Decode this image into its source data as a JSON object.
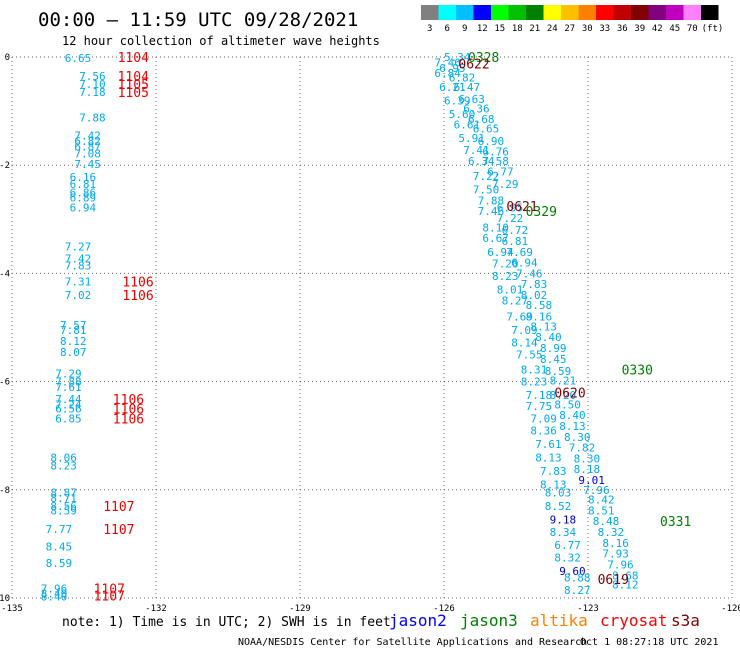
{
  "header": {
    "title": "00:00 – 11:59 UTC 09/28/2021",
    "subtitle": "12 hour collection of altimeter wave heights",
    "unit": "(ft)"
  },
  "color_scale": [
    {
      "label": "3",
      "color": "#808080"
    },
    {
      "label": "6",
      "color": "#00ffff"
    },
    {
      "label": "9",
      "color": "#00c0ff"
    },
    {
      "label": "12",
      "color": "#0000ff"
    },
    {
      "label": "15",
      "color": "#00ff00"
    },
    {
      "label": "18",
      "color": "#00c000"
    },
    {
      "label": "21",
      "color": "#008000"
    },
    {
      "label": "24",
      "color": "#ffff00"
    },
    {
      "label": "27",
      "color": "#ffc000"
    },
    {
      "label": "30",
      "color": "#ff8000"
    },
    {
      "label": "33",
      "color": "#ff0000"
    },
    {
      "label": "36",
      "color": "#c00000"
    },
    {
      "label": "39",
      "color": "#800000"
    },
    {
      "label": "42",
      "color": "#800080"
    },
    {
      "label": "45",
      "color": "#c000c0"
    },
    {
      "label": "70",
      "color": "#ff80ff"
    },
    {
      "label": "",
      "color": "#000000"
    }
  ],
  "footer": {
    "note": "note: 1) Time is in UTC; 2) SWH is in feet",
    "credit": "NOAA/NESDIS Center for Satellite Applications and Research",
    "timestamp": "Oct  1 08:27:18 UTC 2021",
    "satellites": [
      {
        "name": "jason2",
        "color": "#0000ff"
      },
      {
        "name": "jason3",
        "color": "#008000"
      },
      {
        "name": "altika",
        "color": "#ff8000"
      },
      {
        "name": "cryosat",
        "color": "#ff0000"
      },
      {
        "name": "s3a",
        "color": "#800000"
      }
    ]
  },
  "chart_data": {
    "type": "scatter",
    "xlim": [
      -135,
      -120
    ],
    "ylim": [
      -10,
      0
    ],
    "x_ticks": [
      "-135",
      "-132",
      "-129",
      "-126",
      "-123",
      "-120"
    ],
    "y_ticks": [
      "0",
      "-2",
      "-4",
      "-6",
      "-8",
      "-10"
    ],
    "grid": "dotted",
    "wave_heights": [
      {
        "x": -133.9,
        "y": -0.02,
        "v": "6.65",
        "color": "#00aaee"
      },
      {
        "x": -133.6,
        "y": -0.35,
        "v": "7.56",
        "color": "#00aaee"
      },
      {
        "x": -133.6,
        "y": -0.5,
        "v": "7.10",
        "color": "#00aaee"
      },
      {
        "x": -133.6,
        "y": -0.65,
        "v": "7.18",
        "color": "#00aaee"
      },
      {
        "x": -133.6,
        "y": -1.12,
        "v": "7.88",
        "color": "#00aaee"
      },
      {
        "x": -133.7,
        "y": -1.45,
        "v": "7.42",
        "color": "#00aaee"
      },
      {
        "x": -133.7,
        "y": -1.55,
        "v": "6.82",
        "color": "#00aaee"
      },
      {
        "x": -133.7,
        "y": -1.65,
        "v": "6.87",
        "color": "#00aaee"
      },
      {
        "x": -133.7,
        "y": -1.78,
        "v": "7.08",
        "color": "#00aaee"
      },
      {
        "x": -133.7,
        "y": -1.98,
        "v": "7.45",
        "color": "#00aaee"
      },
      {
        "x": -133.8,
        "y": -2.22,
        "v": "6.16",
        "color": "#00aaee"
      },
      {
        "x": -133.8,
        "y": -2.35,
        "v": "6.81",
        "color": "#00aaee"
      },
      {
        "x": -133.8,
        "y": -2.5,
        "v": "6.86",
        "color": "#00aaee"
      },
      {
        "x": -133.8,
        "y": -2.6,
        "v": "6.89",
        "color": "#00aaee"
      },
      {
        "x": -133.8,
        "y": -2.78,
        "v": "6.94",
        "color": "#00aaee"
      },
      {
        "x": -133.9,
        "y": -3.5,
        "v": "7.27",
        "color": "#00aaee"
      },
      {
        "x": -133.9,
        "y": -3.72,
        "v": "7.42",
        "color": "#00aaee"
      },
      {
        "x": -133.9,
        "y": -3.85,
        "v": "7.83",
        "color": "#00aaee"
      },
      {
        "x": -133.9,
        "y": -4.15,
        "v": "7.31",
        "color": "#00aaee"
      },
      {
        "x": -133.9,
        "y": -4.4,
        "v": "7.02",
        "color": "#00aaee"
      },
      {
        "x": -134.0,
        "y": -4.95,
        "v": "7.57",
        "color": "#00aaee"
      },
      {
        "x": -134.0,
        "y": -5.05,
        "v": "7.81",
        "color": "#00aaee"
      },
      {
        "x": -134.0,
        "y": -5.25,
        "v": "8.12",
        "color": "#00aaee"
      },
      {
        "x": -134.0,
        "y": -5.45,
        "v": "8.07",
        "color": "#00aaee"
      },
      {
        "x": -134.1,
        "y": -5.85,
        "v": "7.29",
        "color": "#00aaee"
      },
      {
        "x": -134.1,
        "y": -6.0,
        "v": "7.88",
        "color": "#00aaee"
      },
      {
        "x": -134.1,
        "y": -6.1,
        "v": "7.61",
        "color": "#00aaee"
      },
      {
        "x": -134.1,
        "y": -6.32,
        "v": "7.44",
        "color": "#00aaee"
      },
      {
        "x": -134.1,
        "y": -6.42,
        "v": "7.24",
        "color": "#00aaee"
      },
      {
        "x": -134.1,
        "y": -6.5,
        "v": "6.56",
        "color": "#00aaee"
      },
      {
        "x": -134.1,
        "y": -6.68,
        "v": "6.85",
        "color": "#00aaee"
      },
      {
        "x": -134.2,
        "y": -7.4,
        "v": "8.06",
        "color": "#00aaee"
      },
      {
        "x": -134.2,
        "y": -7.55,
        "v": "8.23",
        "color": "#00aaee"
      },
      {
        "x": -134.2,
        "y": -8.05,
        "v": "8.87",
        "color": "#00aaee"
      },
      {
        "x": -134.2,
        "y": -8.15,
        "v": "8.71",
        "color": "#00aaee"
      },
      {
        "x": -134.2,
        "y": -8.3,
        "v": "8.56",
        "color": "#00aaee"
      },
      {
        "x": -134.2,
        "y": -8.38,
        "v": "8.59",
        "color": "#00aaee"
      },
      {
        "x": -134.3,
        "y": -8.72,
        "v": "7.77",
        "color": "#00aaee"
      },
      {
        "x": -134.3,
        "y": -9.05,
        "v": "8.45",
        "color": "#00aaee"
      },
      {
        "x": -134.3,
        "y": -9.35,
        "v": "8.59",
        "color": "#00aaee"
      },
      {
        "x": -134.4,
        "y": -9.82,
        "v": "7.96",
        "color": "#00aaee"
      },
      {
        "x": -134.4,
        "y": -9.92,
        "v": "8.40",
        "color": "#00aaee"
      },
      {
        "x": -134.4,
        "y": -9.97,
        "v": "8.40",
        "color": "#00aaee"
      },
      {
        "x": -126.0,
        "y": -0.0,
        "v": "5.34",
        "color": "#00aaee"
      },
      {
        "x": -126.2,
        "y": -0.1,
        "v": "7.46",
        "color": "#00aaee"
      },
      {
        "x": -126.1,
        "y": -0.2,
        "v": "6.95",
        "color": "#00aaee"
      },
      {
        "x": -126.2,
        "y": -0.3,
        "v": "6.84",
        "color": "#00aaee"
      },
      {
        "x": -125.9,
        "y": -0.38,
        "v": "6.82",
        "color": "#00aaee"
      },
      {
        "x": -126.1,
        "y": -0.55,
        "v": "6.21",
        "color": "#00aaee"
      },
      {
        "x": -125.8,
        "y": -0.55,
        "v": "6.47",
        "color": "#00aaee"
      },
      {
        "x": -126.0,
        "y": -0.8,
        "v": "6.39",
        "color": "#00aaee"
      },
      {
        "x": -125.7,
        "y": -0.78,
        "v": "6.63",
        "color": "#00aaee"
      },
      {
        "x": -125.6,
        "y": -0.95,
        "v": "6.36",
        "color": "#00aaee"
      },
      {
        "x": -125.9,
        "y": -1.05,
        "v": "5.60",
        "color": "#00aaee"
      },
      {
        "x": -125.5,
        "y": -1.15,
        "v": "6.68",
        "color": "#00aaee"
      },
      {
        "x": -125.8,
        "y": -1.25,
        "v": "6.61",
        "color": "#00aaee"
      },
      {
        "x": -125.4,
        "y": -1.32,
        "v": "6.65",
        "color": "#00aaee"
      },
      {
        "x": -125.7,
        "y": -1.5,
        "v": "5.91",
        "color": "#00aaee"
      },
      {
        "x": -125.3,
        "y": -1.55,
        "v": "6.90",
        "color": "#00aaee"
      },
      {
        "x": -125.6,
        "y": -1.72,
        "v": "7.41",
        "color": "#00aaee"
      },
      {
        "x": -125.2,
        "y": -1.75,
        "v": "6.76",
        "color": "#00aaee"
      },
      {
        "x": -125.5,
        "y": -1.92,
        "v": "6.34",
        "color": "#00aaee"
      },
      {
        "x": -125.2,
        "y": -1.92,
        "v": "7.58",
        "color": "#00aaee"
      },
      {
        "x": -125.1,
        "y": -2.12,
        "v": "6.77",
        "color": "#00aaee"
      },
      {
        "x": -125.4,
        "y": -2.2,
        "v": "7.22",
        "color": "#00aaee"
      },
      {
        "x": -125.0,
        "y": -2.35,
        "v": "7.29",
        "color": "#00aaee"
      },
      {
        "x": -125.4,
        "y": -2.45,
        "v": "7.50",
        "color": "#00aaee"
      },
      {
        "x": -125.3,
        "y": -2.65,
        "v": "7.88",
        "color": "#00aaee"
      },
      {
        "x": -124.9,
        "y": -2.78,
        "v": "6.95",
        "color": "#00aaee"
      },
      {
        "x": -125.3,
        "y": -2.85,
        "v": "7.46",
        "color": "#00aaee"
      },
      {
        "x": -124.9,
        "y": -2.98,
        "v": "7.22",
        "color": "#00aaee"
      },
      {
        "x": -125.2,
        "y": -3.15,
        "v": "8.10",
        "color": "#00aaee"
      },
      {
        "x": -124.8,
        "y": -3.2,
        "v": "6.72",
        "color": "#00aaee"
      },
      {
        "x": -125.2,
        "y": -3.35,
        "v": "6.67",
        "color": "#00aaee"
      },
      {
        "x": -124.8,
        "y": -3.4,
        "v": "6.81",
        "color": "#00aaee"
      },
      {
        "x": -125.1,
        "y": -3.6,
        "v": "6.94",
        "color": "#00aaee"
      },
      {
        "x": -124.7,
        "y": -3.6,
        "v": "7.69",
        "color": "#00aaee"
      },
      {
        "x": -125.0,
        "y": -3.82,
        "v": "7.20",
        "color": "#00aaee"
      },
      {
        "x": -124.6,
        "y": -3.8,
        "v": "6.94",
        "color": "#00aaee"
      },
      {
        "x": -124.5,
        "y": -4.0,
        "v": "7.46",
        "color": "#00aaee"
      },
      {
        "x": -125.0,
        "y": -4.05,
        "v": "8.23",
        "color": "#00aaee"
      },
      {
        "x": -124.4,
        "y": -4.2,
        "v": "7.83",
        "color": "#00aaee"
      },
      {
        "x": -124.9,
        "y": -4.3,
        "v": "8.01",
        "color": "#00aaee"
      },
      {
        "x": -124.4,
        "y": -4.4,
        "v": "8.02",
        "color": "#00aaee"
      },
      {
        "x": -124.8,
        "y": -4.5,
        "v": "8.27",
        "color": "#00aaee"
      },
      {
        "x": -124.3,
        "y": -4.58,
        "v": "8.58",
        "color": "#00aaee"
      },
      {
        "x": -124.7,
        "y": -4.8,
        "v": "7.69",
        "color": "#00aaee"
      },
      {
        "x": -124.3,
        "y": -4.8,
        "v": "8.16",
        "color": "#00aaee"
      },
      {
        "x": -124.2,
        "y": -4.98,
        "v": "8.13",
        "color": "#00aaee"
      },
      {
        "x": -124.6,
        "y": -5.05,
        "v": "7.09",
        "color": "#00aaee"
      },
      {
        "x": -124.1,
        "y": -5.18,
        "v": "8.40",
        "color": "#00aaee"
      },
      {
        "x": -124.6,
        "y": -5.28,
        "v": "8.14",
        "color": "#00aaee"
      },
      {
        "x": -124.0,
        "y": -5.38,
        "v": "8.99",
        "color": "#00aaee"
      },
      {
        "x": -124.5,
        "y": -5.5,
        "v": "7.55",
        "color": "#00aaee"
      },
      {
        "x": -124.0,
        "y": -5.58,
        "v": "8.45",
        "color": "#00aaee"
      },
      {
        "x": -124.4,
        "y": -5.78,
        "v": "8.31",
        "color": "#00aaee"
      },
      {
        "x": -123.9,
        "y": -5.8,
        "v": "8.59",
        "color": "#00aaee"
      },
      {
        "x": -123.8,
        "y": -5.98,
        "v": "8.21",
        "color": "#00aaee"
      },
      {
        "x": -124.4,
        "y": -6.0,
        "v": "8.23",
        "color": "#00aaee"
      },
      {
        "x": -124.3,
        "y": -6.25,
        "v": "7.18",
        "color": "#00aaee"
      },
      {
        "x": -123.8,
        "y": -6.25,
        "v": "8.20",
        "color": "#00aaee"
      },
      {
        "x": -123.7,
        "y": -6.42,
        "v": "8.50",
        "color": "#00aaee"
      },
      {
        "x": -124.3,
        "y": -6.45,
        "v": "7.75",
        "color": "#00aaee"
      },
      {
        "x": -123.6,
        "y": -6.62,
        "v": "8.40",
        "color": "#00aaee"
      },
      {
        "x": -124.2,
        "y": -6.68,
        "v": "7.09",
        "color": "#00aaee"
      },
      {
        "x": -123.6,
        "y": -6.82,
        "v": "8.13",
        "color": "#00aaee"
      },
      {
        "x": -124.2,
        "y": -6.9,
        "v": "8.36",
        "color": "#00aaee"
      },
      {
        "x": -123.5,
        "y": -7.02,
        "v": "8.30",
        "color": "#00aaee"
      },
      {
        "x": -124.1,
        "y": -7.15,
        "v": "7.61",
        "color": "#00aaee"
      },
      {
        "x": -123.4,
        "y": -7.22,
        "v": "7.82",
        "color": "#00aaee"
      },
      {
        "x": -124.1,
        "y": -7.4,
        "v": "8.13",
        "color": "#00aaee"
      },
      {
        "x": -123.3,
        "y": -7.42,
        "v": "8.30",
        "color": "#00aaee"
      },
      {
        "x": -123.3,
        "y": -7.62,
        "v": "8.18",
        "color": "#00aaee"
      },
      {
        "x": -124.0,
        "y": -7.65,
        "v": "7.83",
        "color": "#00aaee"
      },
      {
        "x": -123.2,
        "y": -7.82,
        "v": "9.01",
        "color": "#0000cc"
      },
      {
        "x": -124.0,
        "y": -7.9,
        "v": "8.13",
        "color": "#00aaee"
      },
      {
        "x": -123.1,
        "y": -8.0,
        "v": "7.96",
        "color": "#00aaee"
      },
      {
        "x": -123.9,
        "y": -8.05,
        "v": "8.03",
        "color": "#00aaee"
      },
      {
        "x": -123.0,
        "y": -8.18,
        "v": "8.42",
        "color": "#00aaee"
      },
      {
        "x": -123.9,
        "y": -8.3,
        "v": "8.52",
        "color": "#00aaee"
      },
      {
        "x": -123.0,
        "y": -8.38,
        "v": "8.51",
        "color": "#00aaee"
      },
      {
        "x": -123.8,
        "y": -8.55,
        "v": "9.18",
        "color": "#0000cc"
      },
      {
        "x": -122.9,
        "y": -8.58,
        "v": "8.48",
        "color": "#00aaee"
      },
      {
        "x": -122.8,
        "y": -8.78,
        "v": "8.32",
        "color": "#00aaee"
      },
      {
        "x": -123.8,
        "y": -8.78,
        "v": "8.34",
        "color": "#00aaee"
      },
      {
        "x": -122.7,
        "y": -8.98,
        "v": "8.16",
        "color": "#00aaee"
      },
      {
        "x": -123.7,
        "y": -9.02,
        "v": "6.77",
        "color": "#00aaee"
      },
      {
        "x": -122.7,
        "y": -9.18,
        "v": "7.93",
        "color": "#00aaee"
      },
      {
        "x": -123.7,
        "y": -9.25,
        "v": "8.32",
        "color": "#00aaee"
      },
      {
        "x": -122.6,
        "y": -9.38,
        "v": "7.96",
        "color": "#00aaee"
      },
      {
        "x": -123.6,
        "y": -9.5,
        "v": "9.60",
        "color": "#0000cc"
      },
      {
        "x": -122.5,
        "y": -9.58,
        "v": "8.68",
        "color": "#00aaee"
      },
      {
        "x": -123.5,
        "y": -9.62,
        "v": "8.88",
        "color": "#00aaee"
      },
      {
        "x": -122.5,
        "y": -9.75,
        "v": "8.12",
        "color": "#00aaee"
      },
      {
        "x": -123.5,
        "y": -9.85,
        "v": "8.27",
        "color": "#00aaee"
      }
    ],
    "time_labels": [
      {
        "x": -132.8,
        "y": -0.0,
        "t": "1104",
        "color": "#ee0000"
      },
      {
        "x": -132.8,
        "y": -0.35,
        "t": "1104",
        "color": "#ee0000"
      },
      {
        "x": -132.8,
        "y": -0.5,
        "t": "1105",
        "color": "#ee0000"
      },
      {
        "x": -132.8,
        "y": -0.65,
        "t": "1105",
        "color": "#ee0000"
      },
      {
        "x": -132.7,
        "y": -4.15,
        "t": "1106",
        "color": "#ee0000"
      },
      {
        "x": -132.7,
        "y": -4.4,
        "t": "1106",
        "color": "#ee0000"
      },
      {
        "x": -132.9,
        "y": -6.32,
        "t": "1106",
        "color": "#ee0000"
      },
      {
        "x": -132.9,
        "y": -6.5,
        "t": "1106",
        "color": "#ee0000"
      },
      {
        "x": -132.9,
        "y": -6.68,
        "t": "1106",
        "color": "#ee0000"
      },
      {
        "x": -133.1,
        "y": -8.3,
        "t": "1107",
        "color": "#ee0000"
      },
      {
        "x": -133.1,
        "y": -8.72,
        "t": "1107",
        "color": "#ee0000"
      },
      {
        "x": -133.3,
        "y": -9.82,
        "t": "1107",
        "color": "#ee0000"
      },
      {
        "x": -133.3,
        "y": -9.95,
        "t": "1107",
        "color": "#ee0000"
      },
      {
        "x": -125.5,
        "y": -0.0,
        "t": "0328",
        "color": "#008000"
      },
      {
        "x": -125.7,
        "y": -0.12,
        "t": "0622",
        "color": "#800000"
      },
      {
        "x": -124.7,
        "y": -2.75,
        "t": "0621",
        "color": "#800000"
      },
      {
        "x": -124.3,
        "y": -2.85,
        "t": "0329",
        "color": "#008000"
      },
      {
        "x": -122.3,
        "y": -5.78,
        "t": "0330",
        "color": "#008000"
      },
      {
        "x": -123.7,
        "y": -6.2,
        "t": "0620",
        "color": "#800000"
      },
      {
        "x": -121.5,
        "y": -8.58,
        "t": "0331",
        "color": "#008000"
      },
      {
        "x": -122.8,
        "y": -9.65,
        "t": "0619",
        "color": "#800000"
      }
    ]
  }
}
